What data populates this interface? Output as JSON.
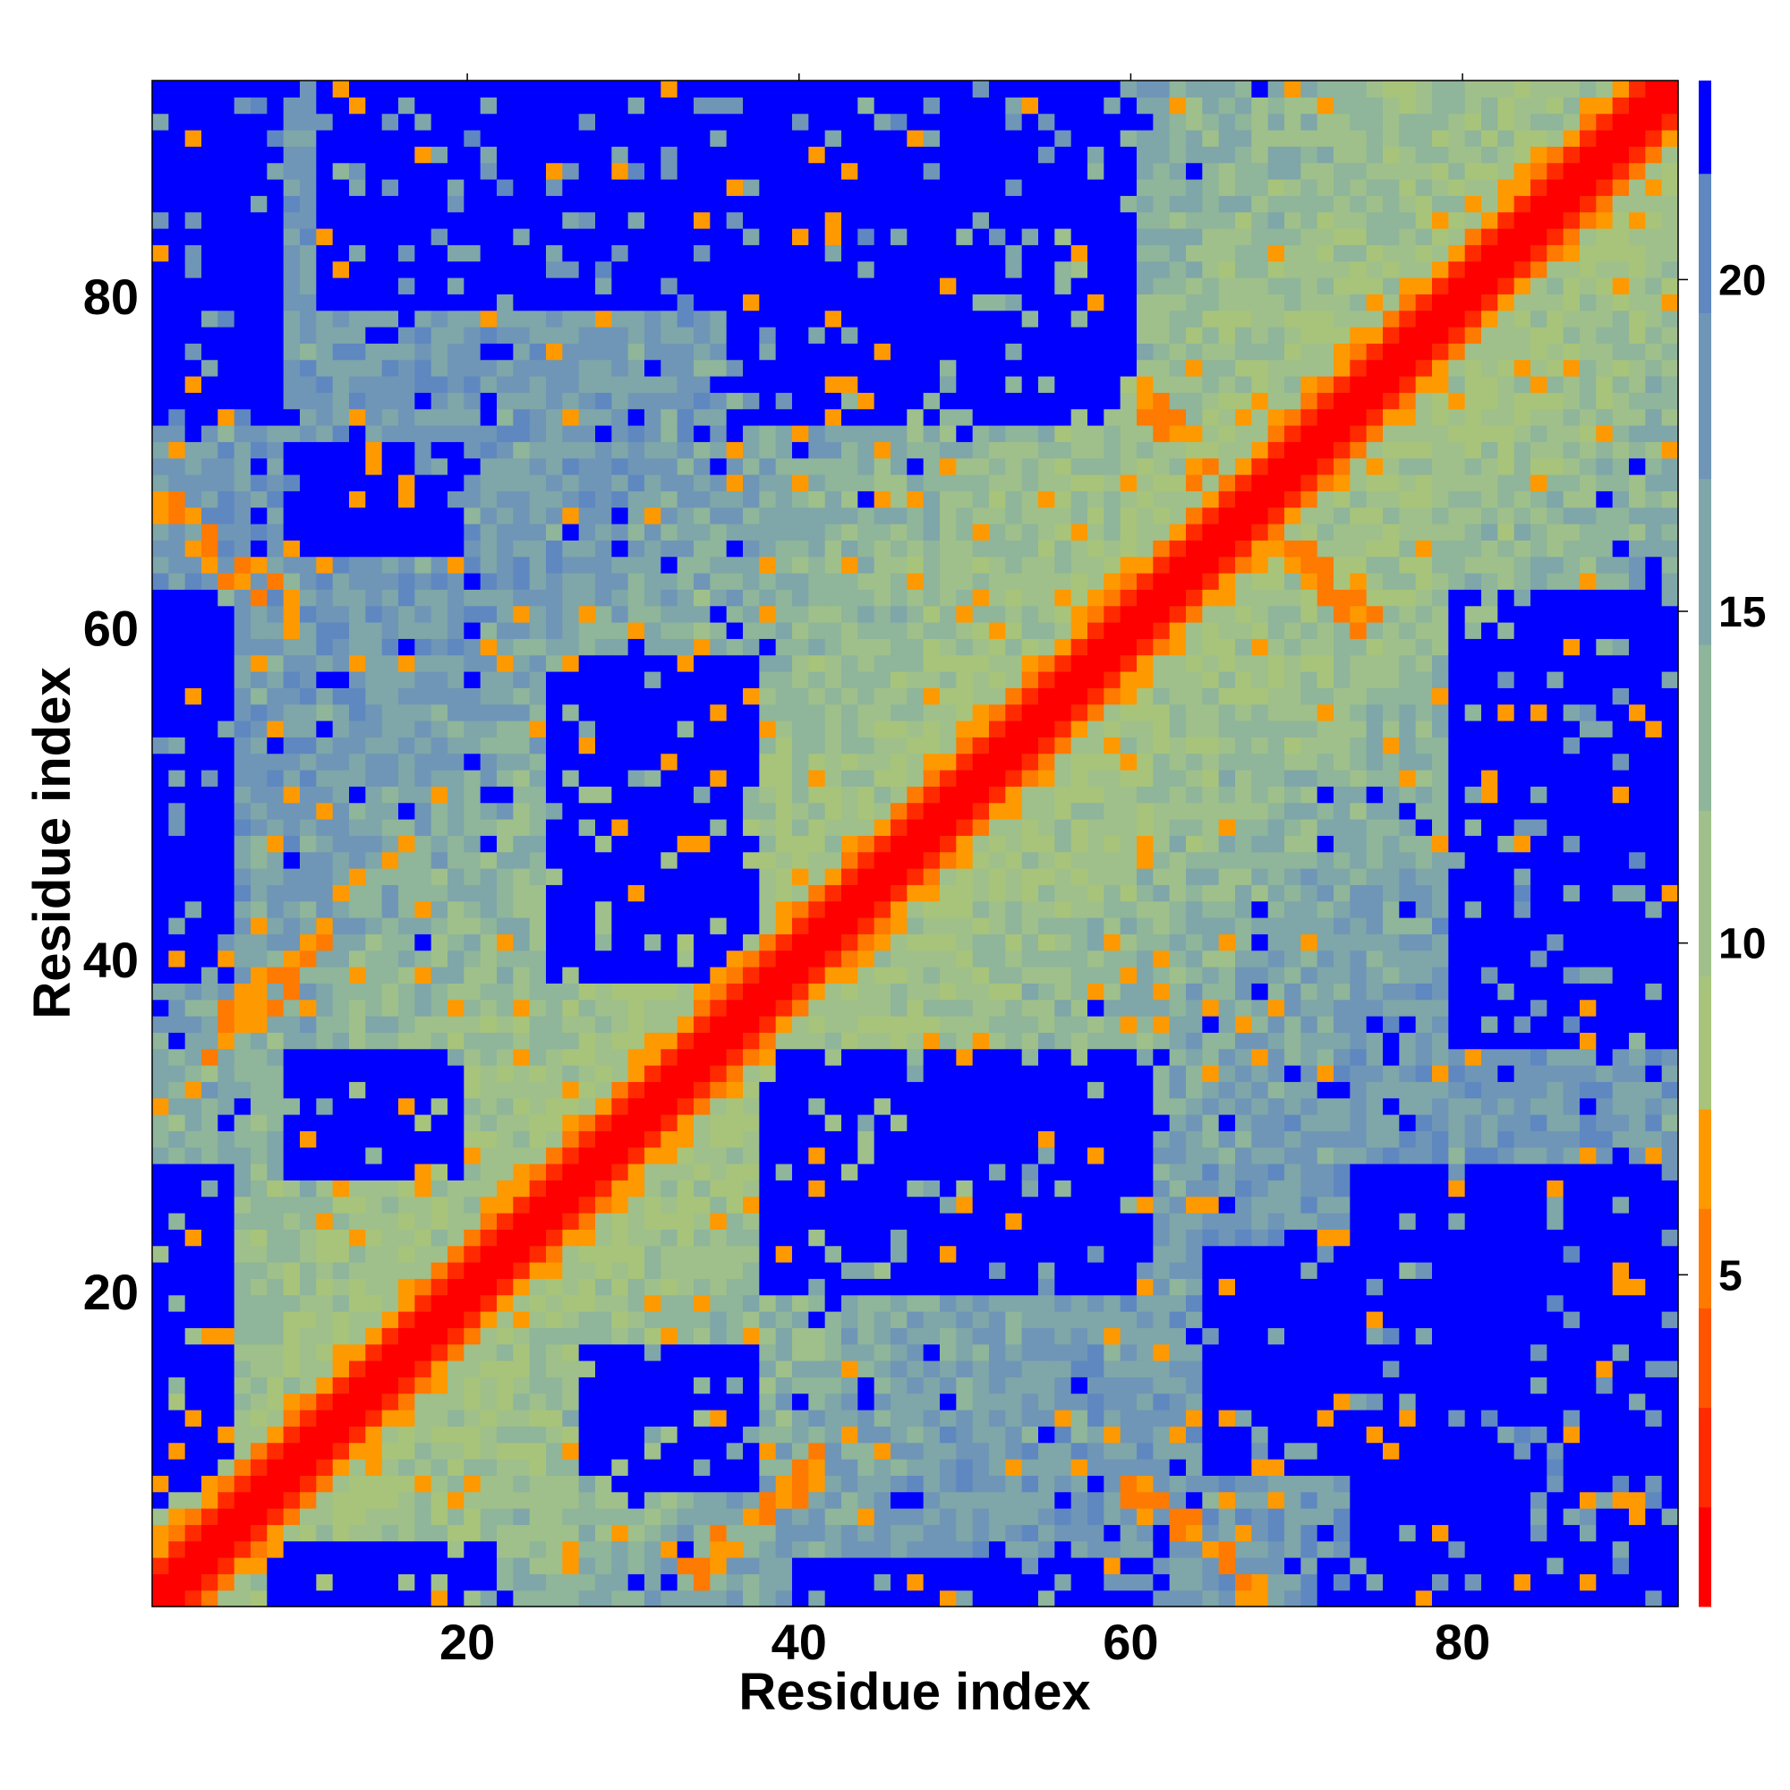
{
  "chart_data": {
    "type": "heatmap",
    "title": "",
    "xlabel": "Residue index",
    "ylabel": "Residue index",
    "n": 93,
    "xlim": [
      1,
      93
    ],
    "ylim": [
      1,
      93
    ],
    "x_ticks": [
      20,
      40,
      60,
      80
    ],
    "y_ticks": [
      20,
      40,
      60,
      80
    ],
    "colorbar": {
      "ticks": [
        5,
        10,
        15,
        20
      ],
      "range": [
        0,
        23
      ],
      "bands": [
        {
          "min": 0,
          "max": 1.5,
          "color": "#ff0000"
        },
        {
          "min": 1.5,
          "max": 3.0,
          "color": "#ff2a00"
        },
        {
          "min": 3.0,
          "max": 4.5,
          "color": "#ff5500"
        },
        {
          "min": 4.5,
          "max": 6.0,
          "color": "#ff7a00"
        },
        {
          "min": 6.0,
          "max": 7.5,
          "color": "#ff9900"
        },
        {
          "min": 7.5,
          "max": 9.5,
          "color": "#a8c47a"
        },
        {
          "min": 9.5,
          "max": 12.0,
          "color": "#9fc08a"
        },
        {
          "min": 12.0,
          "max": 14.5,
          "color": "#8fb59a"
        },
        {
          "min": 14.5,
          "max": 17.0,
          "color": "#7fa6a8"
        },
        {
          "min": 17.0,
          "max": 19.5,
          "color": "#6f96b6"
        },
        {
          "min": 19.5,
          "max": 21.6,
          "color": "#5f88c0"
        },
        {
          "min": 21.6,
          "max": 23.0,
          "color": "#0000ff"
        }
      ]
    },
    "blue_regions": [
      {
        "x": [
          11,
          36
        ],
        "y": [
          80,
          93
        ]
      },
      {
        "x": [
          36,
          60
        ],
        "y": [
          73,
          93
        ]
      },
      {
        "x": [
          1,
          8
        ],
        "y": [
          73,
          93
        ]
      },
      {
        "x": [
          9,
          19
        ],
        "y": [
          65,
          71
        ]
      },
      {
        "x": [
          25,
          37
        ],
        "y": [
          39,
          58
        ]
      },
      {
        "x": [
          9,
          19
        ],
        "y": [
          27,
          34
        ]
      },
      {
        "x": [
          38,
          61
        ],
        "y": [
          20,
          34
        ]
      },
      {
        "x": [
          1,
          5
        ],
        "y": [
          39,
          62
        ]
      },
      {
        "x": [
          80,
          93
        ],
        "y": [
          35,
          62
        ]
      },
      {
        "x": [
          74,
          93
        ],
        "y": [
          1,
          27
        ]
      },
      {
        "x": [
          65,
          74
        ],
        "y": [
          9,
          22
        ]
      },
      {
        "x": [
          27,
          37
        ],
        "y": [
          8,
          16
        ]
      },
      {
        "x": [
          1,
          5
        ],
        "y": [
          7,
          27
        ]
      },
      {
        "x": [
          8,
          21
        ],
        "y": [
          1,
          4
        ]
      },
      {
        "x": [
          40,
          62
        ],
        "y": [
          1,
          3
        ]
      },
      {
        "x": [
          72,
          93
        ],
        "y": [
          1,
          3
        ]
      }
    ],
    "orange_features": [
      {
        "x0": 2,
        "y0": 67,
        "x1": 9,
        "y1": 61
      },
      {
        "x0": 4,
        "y0": 35,
        "x1": 11,
        "y1": 41
      },
      {
        "x0": 34,
        "y0": 3,
        "x1": 41,
        "y1": 9
      },
      {
        "x0": 60,
        "y0": 8,
        "x1": 68,
        "y1": 2
      },
      {
        "x0": 61,
        "y0": 74,
        "x1": 66,
        "y1": 68
      },
      {
        "x0": 69,
        "y0": 66,
        "x1": 74,
        "y1": 61
      },
      {
        "x0": 73,
        "y0": 72,
        "x1": 92,
        "y1": 93
      },
      {
        "x0": 17,
        "y0": 16,
        "x1": 36,
        "y1": 33
      },
      {
        "x0": 45,
        "y0": 44,
        "x1": 56,
        "y1": 56
      }
    ]
  }
}
